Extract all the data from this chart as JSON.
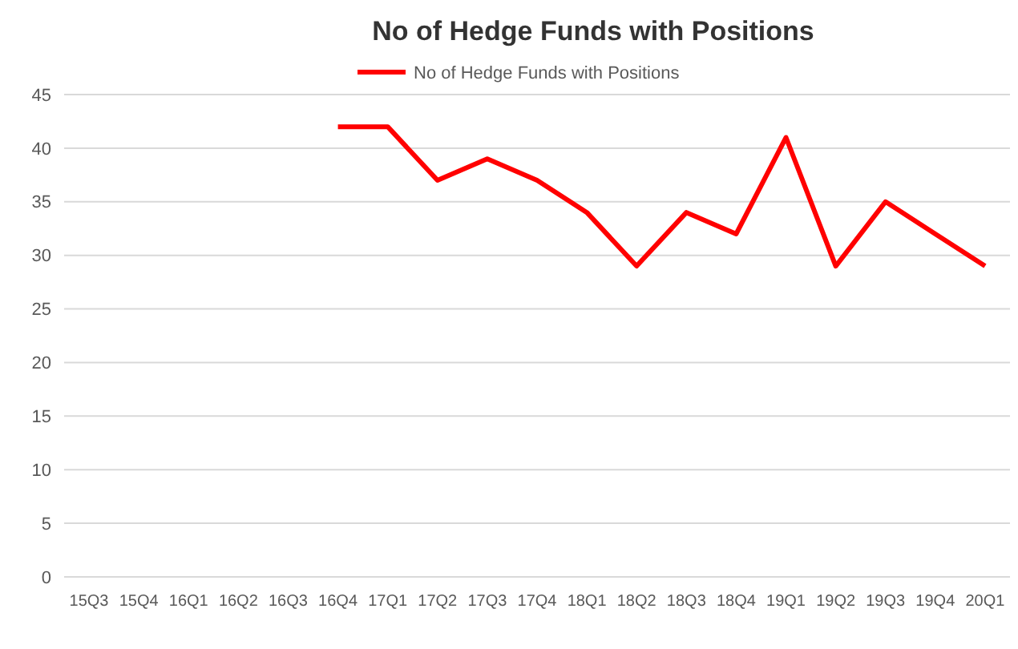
{
  "chart_data": {
    "type": "line",
    "title": "No of Hedge Funds with Positions",
    "categories": [
      "15Q3",
      "15Q4",
      "16Q1",
      "16Q2",
      "16Q3",
      "16Q4",
      "17Q1",
      "17Q2",
      "17Q3",
      "17Q4",
      "18Q1",
      "18Q2",
      "18Q3",
      "18Q4",
      "19Q1",
      "19Q2",
      "19Q3",
      "19Q4",
      "20Q1"
    ],
    "series": [
      {
        "name": "No of Hedge Funds with Positions",
        "color": "#ff0000",
        "values": [
          null,
          null,
          null,
          null,
          null,
          42,
          42,
          37,
          39,
          37,
          34,
          29,
          34,
          32,
          41,
          29,
          35,
          32,
          29
        ]
      }
    ],
    "ylim": [
      0,
      45
    ],
    "yticks": [
      0,
      5,
      10,
      15,
      20,
      25,
      30,
      35,
      40,
      45
    ],
    "grid": "y",
    "legend": "top",
    "marker": "none",
    "line_style": "solid"
  }
}
